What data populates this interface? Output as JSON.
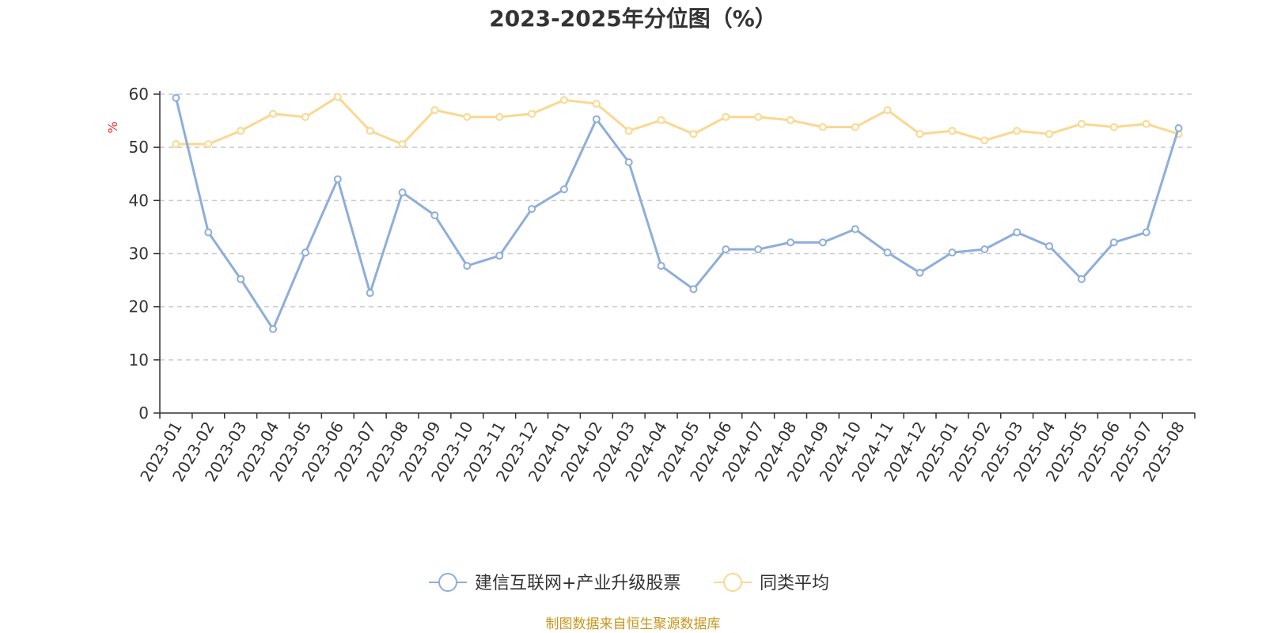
{
  "chart_data": {
    "type": "line",
    "title": "2023-2025年分位图（%）",
    "ylabel": "%",
    "ylim": [
      0,
      60
    ],
    "yticks": [
      0,
      10,
      20,
      30,
      40,
      50,
      60
    ],
    "grid": true,
    "legend_position": "bottom-center",
    "x": [
      "2023-01",
      "2023-02",
      "2023-03",
      "2023-04",
      "2023-05",
      "2023-06",
      "2023-07",
      "2023-08",
      "2023-09",
      "2023-10",
      "2023-11",
      "2023-12",
      "2024-01",
      "2024-02",
      "2024-03",
      "2024-04",
      "2024-05",
      "2024-06",
      "2024-07",
      "2024-08",
      "2024-09",
      "2024-10",
      "2024-11",
      "2024-12",
      "2025-01",
      "2025-02",
      "2025-03",
      "2025-04",
      "2025-05",
      "2025-06",
      "2025-07",
      "2025-08"
    ],
    "series": [
      {
        "name": "建信互联网+产业升级股票",
        "color": "#8eaedb",
        "values": [
          59.3,
          34.0,
          25.2,
          15.8,
          30.2,
          44.0,
          22.6,
          41.5,
          37.2,
          27.7,
          29.6,
          38.4,
          42.1,
          55.3,
          47.2,
          27.7,
          23.3,
          30.8,
          30.8,
          32.1,
          32.1,
          34.6,
          30.2,
          26.4,
          30.2,
          30.8,
          34.0,
          31.4,
          25.2,
          32.1,
          34.0,
          53.6
        ]
      },
      {
        "name": "同类平均",
        "color": "#fad890",
        "values": [
          50.6,
          50.6,
          53.1,
          56.3,
          55.7,
          59.5,
          53.1,
          50.6,
          57.0,
          55.7,
          55.7,
          56.3,
          58.9,
          58.2,
          53.1,
          55.1,
          52.5,
          55.7,
          55.7,
          55.1,
          53.8,
          53.8,
          57.0,
          52.5,
          53.1,
          51.3,
          53.1,
          52.5,
          54.4,
          53.8,
          54.4,
          52.5
        ]
      }
    ]
  },
  "source": "制图数据来自恒生聚源数据库"
}
